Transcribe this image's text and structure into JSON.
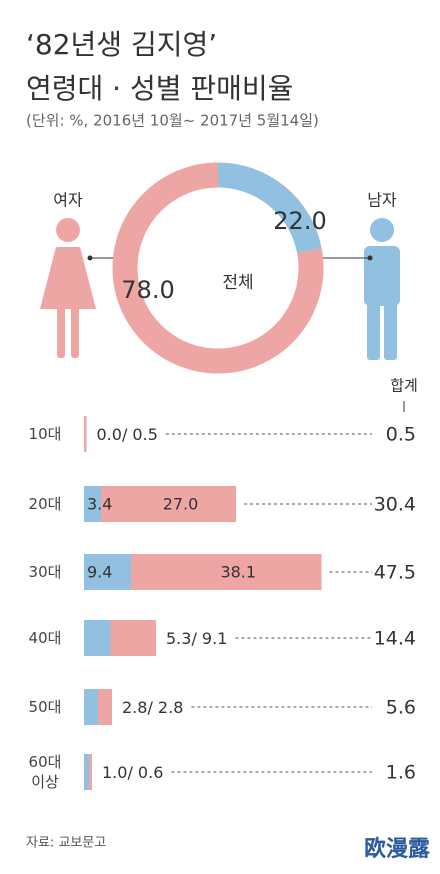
{
  "title": [
    "‘82년생 김지영’",
    "연령대 · 성별 판매비율"
  ],
  "subtitle": "(단위: %, 2016년 10월~ 2017년 5월14일)",
  "source": "자료: 교보문고",
  "watermark": "欧漫露",
  "chart_data": [
    {
      "type": "pie",
      "donut": true,
      "center_label": "전체",
      "categories": [
        "여자",
        "남자"
      ],
      "values": [
        78.0,
        22.0
      ],
      "value_labels": [
        "78.0",
        "22.0"
      ],
      "colors": [
        "#eea6a4",
        "#91c0e0"
      ]
    },
    {
      "type": "bar",
      "orientation": "horizontal",
      "stacked": true,
      "categories": [
        "10대",
        "20대",
        "30대",
        "40대",
        "50대",
        "60대 이상"
      ],
      "xlim": [
        0,
        50
      ],
      "label_separator": "/",
      "series": [
        {
          "color": "#91c0e0",
          "values": [
            0.0,
            3.4,
            9.4,
            5.3,
            2.8,
            1.0
          ],
          "value_labels": [
            "0.0",
            "3.4",
            "9.4",
            "5.3",
            "2.8",
            "1.0"
          ]
        },
        {
          "color": "#eea6a4",
          "values": [
            0.5,
            27.0,
            38.1,
            9.1,
            2.8,
            0.6
          ],
          "value_labels": [
            "0.5",
            "27.0",
            "38.1",
            "9.1",
            "2.8",
            "0.6"
          ]
        }
      ],
      "totals": {
        "label": "합계",
        "values": [
          0.5,
          30.4,
          47.5,
          14.4,
          5.6,
          1.6
        ]
      }
    }
  ]
}
